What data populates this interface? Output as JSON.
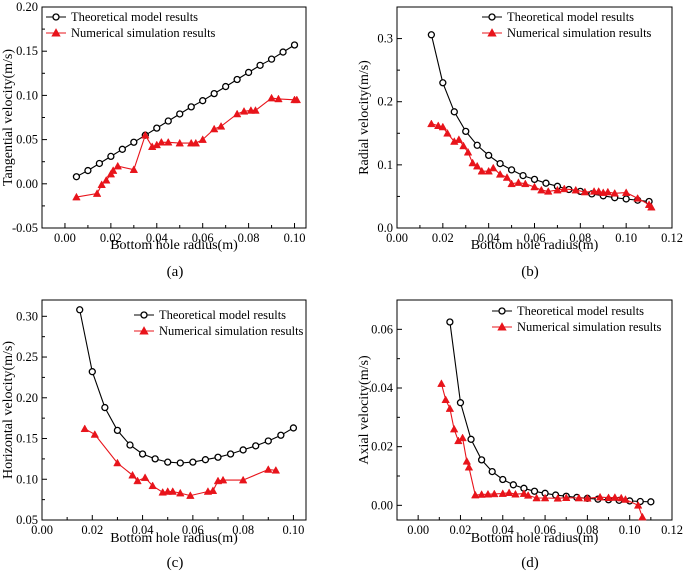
{
  "colors": {
    "theoretical": "#000000",
    "simulation": "#e8141b",
    "axis": "#000000"
  },
  "chart_data": [
    {
      "panel": "(a)",
      "type": "line",
      "xlabel": "Bottom hole radius(m)",
      "ylabel": "Tangential velocity(m/s)",
      "xlim": [
        -0.01,
        0.105
      ],
      "ylim": [
        -0.05,
        0.2
      ],
      "xticks": [
        "0.00",
        "0.02",
        "0.04",
        "0.06",
        "0.08",
        "0.10"
      ],
      "xtick_values": [
        0.0,
        0.02,
        0.04,
        0.06,
        0.08,
        0.1
      ],
      "yticks": [
        "-0.05",
        "0.00",
        "0.05",
        "0.10",
        "0.15",
        "0.20"
      ],
      "ytick_values": [
        -0.05,
        0.0,
        0.05,
        0.1,
        0.15,
        0.2
      ],
      "legend_position": "top-left",
      "series": [
        {
          "name": "Theoretical model results",
          "marker": "circle",
          "points": [
            [
              0.005,
              0.008
            ],
            [
              0.01,
              0.015
            ],
            [
              0.015,
              0.023
            ],
            [
              0.02,
              0.031
            ],
            [
              0.025,
              0.039
            ],
            [
              0.03,
              0.047
            ],
            [
              0.035,
              0.055
            ],
            [
              0.04,
              0.063
            ],
            [
              0.045,
              0.071
            ],
            [
              0.05,
              0.079
            ],
            [
              0.055,
              0.087
            ],
            [
              0.06,
              0.094
            ],
            [
              0.065,
              0.102
            ],
            [
              0.07,
              0.11
            ],
            [
              0.075,
              0.118
            ],
            [
              0.08,
              0.126
            ],
            [
              0.085,
              0.134
            ],
            [
              0.09,
              0.141
            ],
            [
              0.095,
              0.149
            ],
            [
              0.1,
              0.157
            ]
          ]
        },
        {
          "name": "Numerical simulation results",
          "marker": "triangle",
          "points": [
            [
              0.005,
              -0.015
            ],
            [
              0.014,
              -0.011
            ],
            [
              0.016,
              -0.001
            ],
            [
              0.018,
              0.004
            ],
            [
              0.02,
              0.011
            ],
            [
              0.021,
              0.015
            ],
            [
              0.023,
              0.02
            ],
            [
              0.03,
              0.016
            ],
            [
              0.035,
              0.055
            ],
            [
              0.038,
              0.042
            ],
            [
              0.04,
              0.044
            ],
            [
              0.042,
              0.047
            ],
            [
              0.045,
              0.047
            ],
            [
              0.05,
              0.046
            ],
            [
              0.055,
              0.046
            ],
            [
              0.057,
              0.046
            ],
            [
              0.06,
              0.05
            ],
            [
              0.065,
              0.062
            ],
            [
              0.068,
              0.065
            ],
            [
              0.075,
              0.079
            ],
            [
              0.078,
              0.082
            ],
            [
              0.081,
              0.083
            ],
            [
              0.083,
              0.083
            ],
            [
              0.09,
              0.097
            ],
            [
              0.093,
              0.096
            ],
            [
              0.1,
              0.095
            ],
            [
              0.101,
              0.095
            ]
          ]
        }
      ]
    },
    {
      "panel": "(b)",
      "type": "line",
      "xlabel": "Bottom hole radius(m)",
      "ylabel": "Radial velocity(m/s)",
      "xlim": [
        0.0,
        0.12
      ],
      "ylim": [
        0.0,
        0.35
      ],
      "xticks": [
        "0.00",
        "0.02",
        "0.04",
        "0.06",
        "0.08",
        "0.10",
        "0.12"
      ],
      "xtick_values": [
        0.0,
        0.02,
        0.04,
        0.06,
        0.08,
        0.1,
        0.12
      ],
      "yticks": [
        "0.0",
        "0.1",
        "0.2",
        "0.3"
      ],
      "ytick_values": [
        0.0,
        0.1,
        0.2,
        0.3
      ],
      "legend_position": "top-right",
      "series": [
        {
          "name": "Theoretical model results",
          "marker": "circle",
          "points": [
            [
              0.015,
              0.306
            ],
            [
              0.02,
              0.23
            ],
            [
              0.025,
              0.184
            ],
            [
              0.03,
              0.153
            ],
            [
              0.035,
              0.131
            ],
            [
              0.04,
              0.115
            ],
            [
              0.045,
              0.102
            ],
            [
              0.05,
              0.092
            ],
            [
              0.055,
              0.083
            ],
            [
              0.06,
              0.077
            ],
            [
              0.065,
              0.071
            ],
            [
              0.07,
              0.066
            ],
            [
              0.075,
              0.061
            ],
            [
              0.08,
              0.058
            ],
            [
              0.085,
              0.054
            ],
            [
              0.09,
              0.051
            ],
            [
              0.095,
              0.048
            ],
            [
              0.1,
              0.046
            ],
            [
              0.105,
              0.044
            ],
            [
              0.11,
              0.042
            ]
          ]
        },
        {
          "name": "Numerical simulation results",
          "marker": "triangle",
          "points": [
            [
              0.015,
              0.165
            ],
            [
              0.018,
              0.162
            ],
            [
              0.02,
              0.16
            ],
            [
              0.022,
              0.15
            ],
            [
              0.025,
              0.137
            ],
            [
              0.027,
              0.14
            ],
            [
              0.029,
              0.13
            ],
            [
              0.031,
              0.12
            ],
            [
              0.033,
              0.103
            ],
            [
              0.035,
              0.098
            ],
            [
              0.037,
              0.09
            ],
            [
              0.04,
              0.09
            ],
            [
              0.042,
              0.095
            ],
            [
              0.045,
              0.085
            ],
            [
              0.048,
              0.08
            ],
            [
              0.05,
              0.07
            ],
            [
              0.053,
              0.072
            ],
            [
              0.056,
              0.07
            ],
            [
              0.06,
              0.065
            ],
            [
              0.063,
              0.06
            ],
            [
              0.066,
              0.058
            ],
            [
              0.07,
              0.06
            ],
            [
              0.073,
              0.062
            ],
            [
              0.078,
              0.06
            ],
            [
              0.082,
              0.057
            ],
            [
              0.086,
              0.058
            ],
            [
              0.088,
              0.058
            ],
            [
              0.09,
              0.056
            ],
            [
              0.092,
              0.057
            ],
            [
              0.095,
              0.055
            ],
            [
              0.1,
              0.056
            ],
            [
              0.105,
              0.047
            ],
            [
              0.11,
              0.037
            ],
            [
              0.111,
              0.033
            ]
          ]
        }
      ]
    },
    {
      "panel": "(c)",
      "type": "line",
      "xlabel": "Bottom hole radius(m)",
      "ylabel": "Horizontal velocity(m/s)",
      "xlim": [
        0.0,
        0.105
      ],
      "ylim": [
        0.05,
        0.32
      ],
      "xticks": [
        "0.00",
        "0.02",
        "0.04",
        "0.06",
        "0.08",
        "0.10"
      ],
      "xtick_values": [
        0.0,
        0.02,
        0.04,
        0.06,
        0.08,
        0.1
      ],
      "yticks": [
        "0.05",
        "0.10",
        "0.15",
        "0.20",
        "0.25",
        "0.30"
      ],
      "ytick_values": [
        0.05,
        0.1,
        0.15,
        0.2,
        0.25,
        0.3
      ],
      "legend_position": "top-right",
      "series": [
        {
          "name": "Theoretical model results",
          "marker": "circle",
          "points": [
            [
              0.015,
              0.308
            ],
            [
              0.02,
              0.232
            ],
            [
              0.025,
              0.188
            ],
            [
              0.03,
              0.16
            ],
            [
              0.035,
              0.142
            ],
            [
              0.04,
              0.131
            ],
            [
              0.045,
              0.125
            ],
            [
              0.05,
              0.121
            ],
            [
              0.055,
              0.12
            ],
            [
              0.06,
              0.121
            ],
            [
              0.065,
              0.124
            ],
            [
              0.07,
              0.127
            ],
            [
              0.075,
              0.131
            ],
            [
              0.08,
              0.136
            ],
            [
              0.085,
              0.141
            ],
            [
              0.09,
              0.147
            ],
            [
              0.095,
              0.154
            ],
            [
              0.1,
              0.163
            ]
          ]
        },
        {
          "name": "Numerical simulation results",
          "marker": "triangle",
          "points": [
            [
              0.017,
              0.162
            ],
            [
              0.021,
              0.155
            ],
            [
              0.03,
              0.12
            ],
            [
              0.036,
              0.105
            ],
            [
              0.038,
              0.098
            ],
            [
              0.041,
              0.102
            ],
            [
              0.044,
              0.092
            ],
            [
              0.048,
              0.084
            ],
            [
              0.05,
              0.085
            ],
            [
              0.052,
              0.085
            ],
            [
              0.055,
              0.083
            ],
            [
              0.059,
              0.08
            ],
            [
              0.066,
              0.085
            ],
            [
              0.068,
              0.086
            ],
            [
              0.07,
              0.098
            ],
            [
              0.072,
              0.099
            ],
            [
              0.08,
              0.099
            ],
            [
              0.09,
              0.112
            ],
            [
              0.093,
              0.111
            ]
          ]
        }
      ]
    },
    {
      "panel": "(d)",
      "type": "line",
      "xlabel": "Bottom hole radius(m)",
      "ylabel": "Axial velocity(m/s)",
      "xlim": [
        -0.01,
        0.12
      ],
      "ylim": [
        -0.005,
        0.07
      ],
      "xticks": [
        "0.00",
        "0.02",
        "0.04",
        "0.06",
        "0.08",
        "0.10",
        "0.12"
      ],
      "xtick_values": [
        0.0,
        0.02,
        0.04,
        0.06,
        0.08,
        0.1,
        0.12
      ],
      "yticks": [
        "0.00",
        "0.02",
        "0.04",
        "0.06"
      ],
      "ytick_values": [
        0.0,
        0.02,
        0.04,
        0.06
      ],
      "legend_position": "top-right",
      "series": [
        {
          "name": "Theoretical model results",
          "marker": "circle",
          "points": [
            [
              0.015,
              0.0625
            ],
            [
              0.02,
              0.035
            ],
            [
              0.025,
              0.0225
            ],
            [
              0.03,
              0.0155
            ],
            [
              0.035,
              0.0115
            ],
            [
              0.04,
              0.0088
            ],
            [
              0.045,
              0.007
            ],
            [
              0.05,
              0.0058
            ],
            [
              0.055,
              0.0048
            ],
            [
              0.06,
              0.0041
            ],
            [
              0.065,
              0.0035
            ],
            [
              0.07,
              0.0031
            ],
            [
              0.075,
              0.0027
            ],
            [
              0.08,
              0.0024
            ],
            [
              0.085,
              0.0021
            ],
            [
              0.09,
              0.0019
            ],
            [
              0.095,
              0.0017
            ],
            [
              0.1,
              0.0015
            ],
            [
              0.105,
              0.0013
            ],
            [
              0.11,
              0.0012
            ]
          ]
        },
        {
          "name": "Numerical simulation results",
          "marker": "triangle",
          "points": [
            [
              0.011,
              0.0415
            ],
            [
              0.013,
              0.036
            ],
            [
              0.015,
              0.033
            ],
            [
              0.017,
              0.026
            ],
            [
              0.019,
              0.022
            ],
            [
              0.021,
              0.023
            ],
            [
              0.023,
              0.015
            ],
            [
              0.024,
              0.013
            ],
            [
              0.027,
              0.0035
            ],
            [
              0.03,
              0.0037
            ],
            [
              0.033,
              0.0038
            ],
            [
              0.036,
              0.0039
            ],
            [
              0.04,
              0.004
            ],
            [
              0.043,
              0.0043
            ],
            [
              0.046,
              0.0038
            ],
            [
              0.05,
              0.004
            ],
            [
              0.052,
              0.0034
            ],
            [
              0.056,
              0.0025
            ],
            [
              0.06,
              0.0025
            ],
            [
              0.066,
              0.0024
            ],
            [
              0.07,
              0.0026
            ],
            [
              0.076,
              0.0025
            ],
            [
              0.08,
              0.0024
            ],
            [
              0.086,
              0.0028
            ],
            [
              0.09,
              0.0026
            ],
            [
              0.093,
              0.0027
            ],
            [
              0.096,
              0.0025
            ],
            [
              0.098,
              0.002
            ],
            [
              0.104,
              0.0
            ],
            [
              0.106,
              -0.004
            ]
          ]
        }
      ]
    }
  ]
}
